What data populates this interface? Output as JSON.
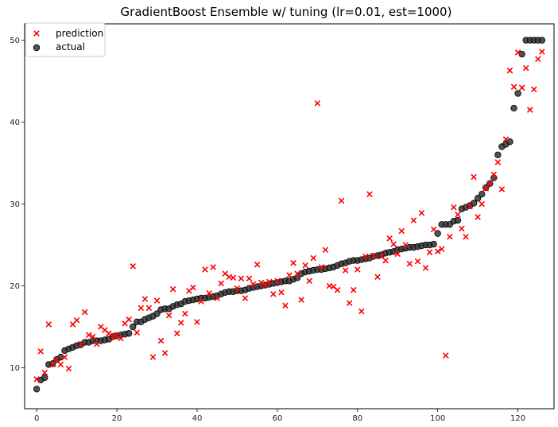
{
  "chart_data": {
    "type": "scatter",
    "title": "GradientBoost Ensemble w/ tuning (lr=0.01, est=1000)",
    "xlabel": "",
    "ylabel": "",
    "xlim": [
      -3,
      129
    ],
    "ylim": [
      5,
      52
    ],
    "xticks": [
      0,
      20,
      40,
      60,
      80,
      100,
      120
    ],
    "yticks": [
      10,
      20,
      30,
      40,
      50
    ],
    "grid": false,
    "legend": "top-left",
    "series": [
      {
        "name": "prediction",
        "marker": "x",
        "color": "#ff0000",
        "values": [
          8.6,
          12.0,
          9.4,
          15.3,
          10.4,
          11.0,
          10.4,
          11.3,
          9.9,
          15.3,
          15.8,
          12.9,
          16.8,
          14.0,
          13.8,
          12.9,
          15.0,
          14.6,
          14.2,
          13.8,
          14.0,
          13.6,
          15.4,
          15.9,
          22.4,
          14.3,
          17.3,
          18.4,
          17.3,
          11.3,
          18.2,
          13.3,
          11.8,
          16.4,
          19.6,
          14.2,
          15.5,
          16.6,
          19.4,
          19.8,
          15.6,
          18.1,
          22.0,
          19.1,
          22.3,
          18.5,
          20.3,
          21.5,
          21.1,
          21.0,
          19.7,
          20.9,
          18.5,
          20.9,
          20.2,
          22.6,
          20.4,
          20.1,
          20.5,
          19.0,
          20.6,
          19.2,
          17.6,
          21.3,
          22.8,
          21.5,
          18.3,
          22.5,
          20.6,
          23.4,
          42.3,
          22.3,
          24.4,
          20.0,
          19.9,
          19.5,
          30.4,
          21.9,
          17.9,
          19.5,
          22.0,
          16.9,
          23.6,
          31.2,
          23.7,
          21.1,
          23.6,
          23.1,
          25.8,
          25.1,
          23.9,
          26.7,
          25.0,
          22.7,
          28.0,
          23.0,
          28.9,
          22.2,
          24.1,
          26.9,
          24.2,
          24.5,
          11.5,
          26.0,
          29.6,
          28.7,
          27.0,
          26.0,
          29.7,
          33.3,
          28.4,
          30.0,
          31.9,
          32.5,
          33.6,
          35.1,
          31.8,
          37.9,
          46.3,
          44.3,
          48.5,
          44.2,
          46.6,
          41.5,
          44.0,
          47.7,
          48.6
        ]
      },
      {
        "name": "actual",
        "marker": "o",
        "color": "#333333",
        "values": [
          7.4,
          8.5,
          8.8,
          10.4,
          10.5,
          11.0,
          11.3,
          12.1,
          12.3,
          12.5,
          12.7,
          12.8,
          13.1,
          13.1,
          13.3,
          13.3,
          13.3,
          13.4,
          13.5,
          13.8,
          13.9,
          14.0,
          14.1,
          14.2,
          15.0,
          15.6,
          15.6,
          15.9,
          16.1,
          16.3,
          16.6,
          17.1,
          17.2,
          17.2,
          17.5,
          17.7,
          17.8,
          18.1,
          18.2,
          18.3,
          18.4,
          18.5,
          18.5,
          18.6,
          18.7,
          18.8,
          19.0,
          19.2,
          19.3,
          19.3,
          19.4,
          19.4,
          19.5,
          19.7,
          19.8,
          19.9,
          20.0,
          20.1,
          20.2,
          20.3,
          20.4,
          20.5,
          20.6,
          20.6,
          20.8,
          21.0,
          21.5,
          21.7,
          21.8,
          21.9,
          22.0,
          22.0,
          22.1,
          22.2,
          22.3,
          22.5,
          22.7,
          22.8,
          23.0,
          23.1,
          23.1,
          23.2,
          23.3,
          23.4,
          23.6,
          23.7,
          23.8,
          24.0,
          24.1,
          24.2,
          24.4,
          24.5,
          24.6,
          24.7,
          24.7,
          24.8,
          24.9,
          25.0,
          25.0,
          25.1,
          26.4,
          27.5,
          27.5,
          27.5,
          27.9,
          28.0,
          29.4,
          29.6,
          29.8,
          30.1,
          30.7,
          31.2,
          32.0,
          32.5,
          33.2,
          36.0,
          37.0,
          37.3,
          37.6,
          41.7,
          43.5,
          48.3,
          50.0,
          50.0,
          50.0,
          50.0,
          50.0
        ]
      }
    ]
  }
}
